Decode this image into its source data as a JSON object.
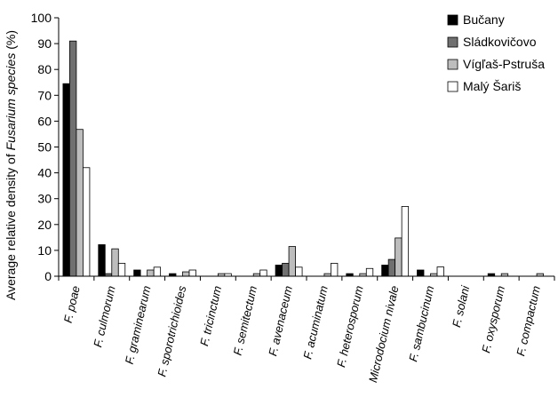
{
  "chart_data": {
    "type": "bar",
    "title": "",
    "ylabel_prefix": "Average relative density of ",
    "ylabel_italic": "Fusarium species",
    "ylabel_suffix": " (%)",
    "ylim": [
      0,
      100
    ],
    "yticks": [
      "0",
      "10",
      "20",
      "30",
      "40",
      "50",
      "60",
      "70",
      "80",
      "90",
      "100"
    ],
    "grid": false,
    "legend_position": "top-right",
    "categories": [
      "F. poae",
      "F. culmorum",
      "F. graminearum",
      "F. sporotrichioides",
      "F. tricinctum",
      "F. semitectum",
      "F. avenaceum",
      "F. acuminatum",
      "F. heterosporum",
      "Microdocium nivale",
      "F. sambucinum",
      "F. solani",
      "F. oxysporum",
      "F. compactum"
    ],
    "series": [
      {
        "name": "Bučany",
        "color": "#000000",
        "values": [
          74.5,
          12.2,
          2.4,
          1.0,
          0,
          0,
          4.3,
          0,
          1.0,
          4.3,
          2.4,
          0,
          1.0,
          0
        ]
      },
      {
        "name": "Sládkovičovo",
        "color": "#707070",
        "values": [
          91.0,
          1.0,
          0,
          0,
          0,
          0,
          5.0,
          0,
          0,
          6.5,
          0,
          0,
          0,
          0
        ]
      },
      {
        "name": "Vígľaš-Pstruša",
        "color": "#bdbdbd",
        "values": [
          56.8,
          10.6,
          2.4,
          1.7,
          1.0,
          1.0,
          11.5,
          1.0,
          1.0,
          14.8,
          1.0,
          0,
          1.0,
          1.0
        ]
      },
      {
        "name": "Malý Šariš",
        "color": "#ffffff",
        "values": [
          42.0,
          5.0,
          3.5,
          2.4,
          1.0,
          2.4,
          3.5,
          5.0,
          3.0,
          27.0,
          3.6,
          0,
          0,
          0
        ]
      }
    ]
  }
}
